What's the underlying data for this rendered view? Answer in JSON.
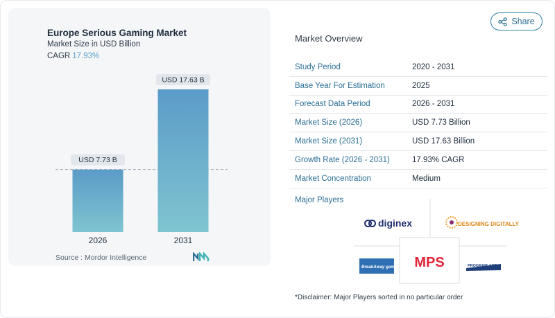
{
  "share_label": "Share",
  "chart": {
    "title": "Europe Serious Gaming Market",
    "subtitle": "Market Size in USD Billion",
    "cagr_label": "CAGR",
    "cagr_value": "17.93%",
    "source": "Source : Mordor Intelligence"
  },
  "chart_data": {
    "type": "bar",
    "categories": [
      "2026",
      "2031"
    ],
    "values": [
      7.73,
      17.63
    ],
    "data_labels": [
      "USD 7.73 B",
      "USD 17.63 B"
    ],
    "title": "Europe Serious Gaming Market",
    "subtitle": "Market Size in USD Billion",
    "xlabel": "",
    "ylabel": "",
    "ylim": [
      0,
      17.63
    ],
    "grid": false,
    "reference_line": "dashed line at 2026 value",
    "colors": [
      "#5b9bc8",
      "#7fc4d0"
    ]
  },
  "overview": {
    "title": "Market Overview",
    "rows": [
      {
        "label": "Study Period",
        "value": "2020 - 2031"
      },
      {
        "label": "Base Year For Estimation",
        "value": "2025"
      },
      {
        "label": "Forecast Data Period",
        "value": "2026 - 2031"
      },
      {
        "label": "Market Size (2026)",
        "value": "USD 7.73 Billion"
      },
      {
        "label": "Market Size (2031)",
        "value": "USD 17.63 Billion"
      },
      {
        "label": "Growth Rate (2026 - 2031)",
        "value": "17.93% CAGR"
      },
      {
        "label": "Market Concentration",
        "value": "Medium"
      }
    ]
  },
  "players": {
    "title": "Major Players",
    "logos": [
      "diginex",
      "DESIGNING DIGITALLY",
      "MPS",
      "BreakAway games",
      "PROGRAM-ACE"
    ]
  },
  "disclaimer": "*Disclaimer: Major Players sorted in no particular order"
}
